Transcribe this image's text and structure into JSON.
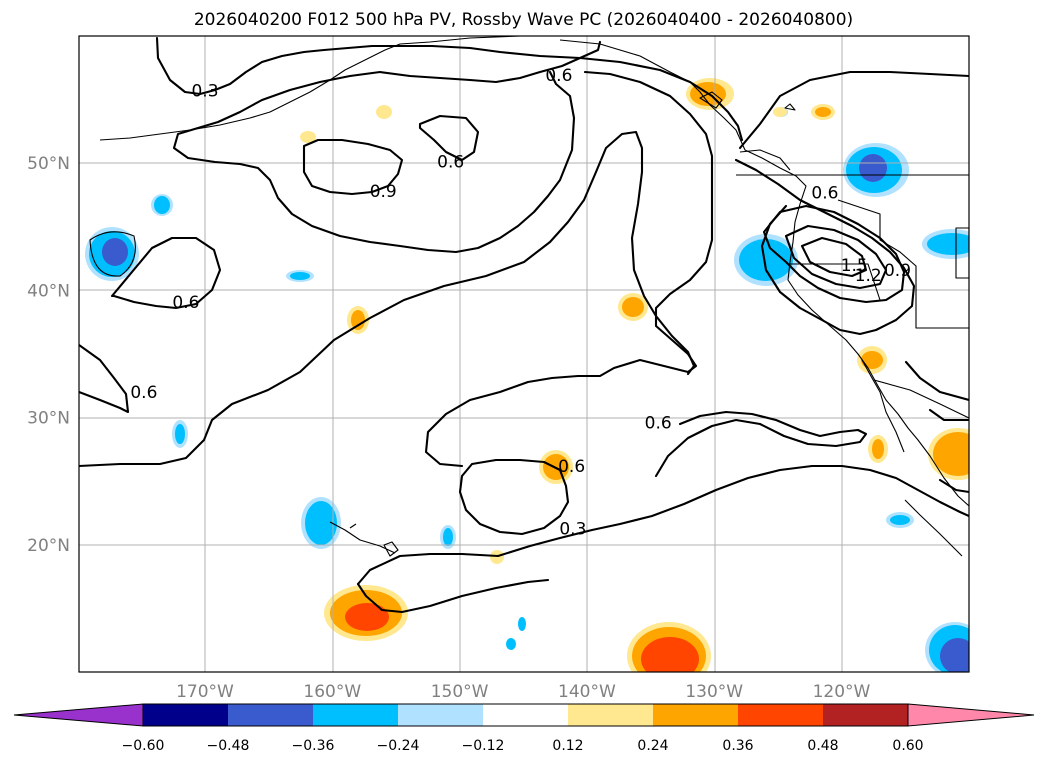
{
  "title": "2026040200 F012 500 hPa PV, Rossby Wave PC (2026040400 - 2026040800)",
  "lat_ticks": [
    {
      "value": 50,
      "label": "50°N"
    },
    {
      "value": 40,
      "label": "40°N"
    },
    {
      "value": 30,
      "label": "30°N"
    },
    {
      "value": 20,
      "label": "20°N"
    }
  ],
  "lon_ticks": [
    {
      "value": -170,
      "label": "170°W"
    },
    {
      "value": -160,
      "label": "160°W"
    },
    {
      "value": -150,
      "label": "150°W"
    },
    {
      "value": -140,
      "label": "140°W"
    },
    {
      "value": -130,
      "label": "130°W"
    },
    {
      "value": -120,
      "label": "120°W"
    }
  ],
  "contour_labels": [
    {
      "text": "0.3",
      "lon": -170.0,
      "lat": 55.7
    },
    {
      "text": "0.6",
      "lon": -142.2,
      "lat": 56.9
    },
    {
      "text": "0.9",
      "lon": -156.0,
      "lat": 47.8
    },
    {
      "text": "0.6",
      "lon": -150.7,
      "lat": 50.1
    },
    {
      "text": "0.6",
      "lon": -171.5,
      "lat": 39.1
    },
    {
      "text": "0.6",
      "lon": -174.8,
      "lat": 32.0
    },
    {
      "text": "0.6",
      "lon": -134.4,
      "lat": 29.6
    },
    {
      "text": "0.6",
      "lon": -141.2,
      "lat": 26.2
    },
    {
      "text": "0.3",
      "lon": -141.1,
      "lat": 21.3
    },
    {
      "text": "0.6",
      "lon": -121.3,
      "lat": 47.7
    },
    {
      "text": "1.5",
      "lon": -119.0,
      "lat": 42.0
    },
    {
      "text": "1.2",
      "lon": -117.9,
      "lat": 41.2
    },
    {
      "text": "0.9",
      "lon": -115.6,
      "lat": 41.6
    }
  ],
  "colorbar": {
    "tick_labels": [
      "−0.60",
      "−0.48",
      "−0.36",
      "−0.24",
      "−0.12",
      "0.12",
      "0.24",
      "0.36",
      "0.48",
      "0.60"
    ],
    "colors": [
      "#9932cc",
      "#00008b",
      "#3a5bcd",
      "#00bfff",
      "#b0e2ff",
      "#ffffff",
      "#ffe88f",
      "#ffa500",
      "#ff4500",
      "#b22222",
      "#ff88aa"
    ]
  }
}
